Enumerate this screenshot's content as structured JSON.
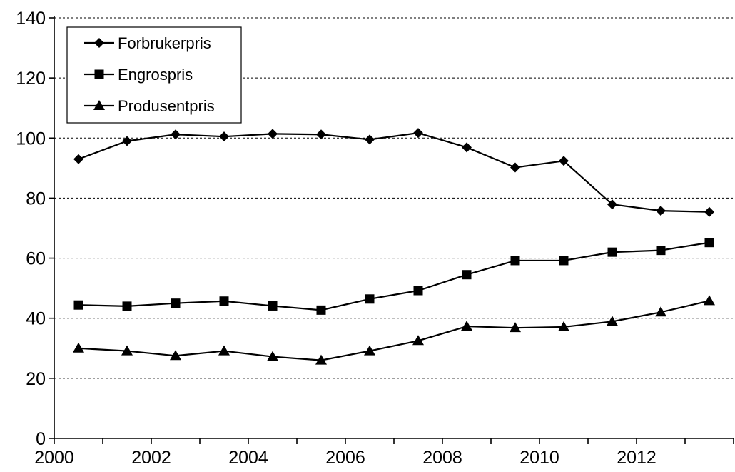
{
  "chart_data": {
    "type": "line",
    "title": "",
    "xlabel": "",
    "ylabel": "",
    "ylim": [
      0,
      140
    ],
    "yticks": [
      0,
      20,
      40,
      60,
      80,
      100,
      120,
      140
    ],
    "xlim": [
      2000,
      2013
    ],
    "xticks": [
      2000,
      2002,
      2004,
      2006,
      2008,
      2010,
      2012
    ],
    "grid": "horizontal dashed",
    "legend": "top-left",
    "x": [
      2000,
      2001,
      2002,
      2003,
      2004,
      2005,
      2006,
      2007,
      2008,
      2009,
      2010,
      2011,
      2012,
      2013
    ],
    "series": [
      {
        "name": "Forbrukerpris",
        "marker": "diamond",
        "values": [
          93,
          99,
          101.2,
          100.5,
          101.4,
          101.2,
          99.5,
          101.7,
          96.9,
          90.2,
          92.4,
          77.9,
          75.8,
          75.4
        ]
      },
      {
        "name": "Engrospris",
        "marker": "square",
        "values": [
          44.4,
          44,
          45,
          45.7,
          44.1,
          42.7,
          46.4,
          49.2,
          54.5,
          59.2,
          59.2,
          62,
          62.6,
          65.2
        ]
      },
      {
        "name": "Produsentpris",
        "marker": "triangle",
        "values": [
          30,
          29.1,
          27.5,
          29.1,
          27.2,
          26,
          29.1,
          32.5,
          37.3,
          36.8,
          37.1,
          38.9,
          42,
          45.8
        ]
      }
    ]
  }
}
